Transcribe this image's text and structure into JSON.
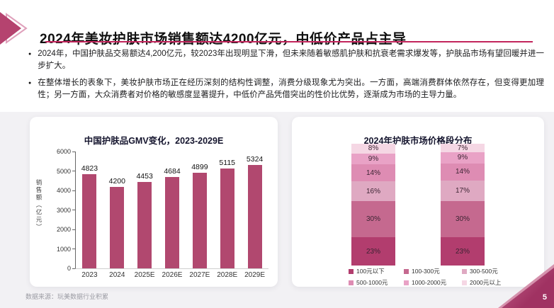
{
  "header": {
    "title": "2024年美妆护肤市场销售额达4200亿元，中低价产品占主导"
  },
  "bullets": [
    "2024年，中国护肤品交易额达4,200亿元，较2023年出现明显下滑，但未来随着敏感肌护肤和抗衰老需求爆发等，护肤品市场有望回暖并进一步扩大。",
    "在整体增长的表象下，美妆护肤市场正在经历深刻的结构性调整，消费分级现象尤为突出。一方面，高端消费群体依然存在，但变得更加理性；另一方面，大众消费者对价格的敏感度显著提升，中低价产品凭借突出的性价比优势，逐渐成为市场的主导力量。"
  ],
  "chart_data": [
    {
      "type": "bar",
      "title": "中国护肤品GMV变化，2023-2029E",
      "ylabel": "销售额（亿元）",
      "categories": [
        "2023",
        "2024",
        "2025E",
        "2026E",
        "2027E",
        "2028E",
        "2029E"
      ],
      "values": [
        4823,
        4200,
        4453,
        4684,
        4899,
        5115,
        5324
      ],
      "ylim": [
        0,
        6000
      ],
      "ytick_step": 1000,
      "bar_color": "#b1486f",
      "grid": false,
      "legend_position": "none"
    },
    {
      "type": "bar",
      "subtype": "stacked_percent",
      "title": "2024年护肤市场价格段分布",
      "bars": 2,
      "stack_order": "first_series_bottom",
      "value_suffix": "%",
      "legend_position": "bottom",
      "series": [
        {
          "name": "100元以下",
          "color": "#b23d6e",
          "values": [
            23,
            23
          ]
        },
        {
          "name": "100-300元",
          "color": "#c5698f",
          "values": [
            30,
            30
          ]
        },
        {
          "name": "300-500元",
          "color": "#dfa9c2",
          "values": [
            16,
            17
          ]
        },
        {
          "name": "500-1000元",
          "color": "#de8cb3",
          "values": [
            14,
            14
          ]
        },
        {
          "name": "1000-2000元",
          "color": "#e9a2c6",
          "values": [
            9,
            9
          ]
        },
        {
          "name": "2000元以上",
          "color": "#f5d7e4",
          "values": [
            8,
            7
          ]
        }
      ]
    }
  ],
  "footer": {
    "source": "数据来源：玩美数据行业积累",
    "page_number": "5"
  },
  "colors": {
    "accent": "#b1486f",
    "title_underline": "#c2255c",
    "corner_triangle": "#a03262",
    "region_background": "#f2f1f4"
  }
}
